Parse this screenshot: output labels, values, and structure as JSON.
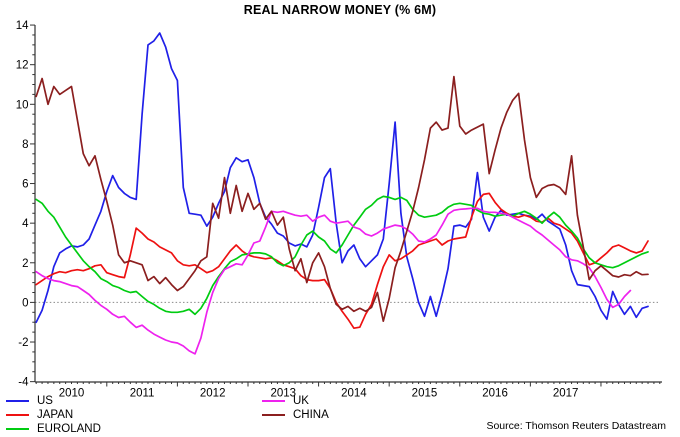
{
  "source": "Source: Thomson Reuters Datastream",
  "legend": {
    "columns": [
      [
        "US",
        "JAPAN",
        "EUROLAND"
      ],
      [
        "UK",
        "CHINA"
      ]
    ]
  },
  "chart_data": {
    "type": "line",
    "title": "REAL NARROW MONEY (% 6M)",
    "x_start": "2010-01",
    "x_end": "2018-09",
    "frequency": "monthly",
    "ylim": [
      -4,
      14
    ],
    "ytick_step": 2,
    "y_ticks": [
      14,
      12,
      10,
      8,
      6,
      4,
      2,
      0,
      -2,
      -4
    ],
    "year_labels": [
      "2010",
      "2011",
      "2012",
      "2013",
      "2014",
      "2015",
      "2016",
      "2017"
    ],
    "zero_line": true,
    "grid": false,
    "legend_position": "bottom",
    "series": [
      {
        "name": "US",
        "color": "#2020e8",
        "values": [
          -1.0,
          -0.4,
          0.6,
          1.8,
          2.5,
          2.7,
          2.85,
          2.8,
          2.9,
          3.2,
          3.9,
          4.6,
          5.6,
          6.4,
          5.8,
          5.5,
          5.3,
          5.2,
          9.5,
          13.0,
          13.2,
          13.6,
          12.9,
          11.8,
          11.2,
          5.8,
          4.5,
          4.45,
          4.4,
          3.85,
          4.3,
          5.0,
          5.6,
          6.8,
          7.3,
          7.1,
          7.2,
          6.3,
          5.0,
          4.3,
          3.95,
          3.5,
          3.35,
          3.0,
          2.85,
          2.95,
          2.8,
          3.4,
          4.8,
          6.3,
          6.75,
          4.0,
          2.0,
          2.6,
          2.9,
          2.2,
          1.8,
          2.1,
          2.4,
          3.2,
          6.0,
          9.1,
          4.5,
          2.3,
          1.2,
          0.0,
          -0.7,
          0.3,
          -0.7,
          0.4,
          1.7,
          3.85,
          3.9,
          3.8,
          4.2,
          6.55,
          4.3,
          3.6,
          4.3,
          4.65,
          4.4,
          4.45,
          4.5,
          4.4,
          4.35,
          4.2,
          4.45,
          4.1,
          3.9,
          3.7,
          2.9,
          1.6,
          0.9,
          0.85,
          0.8,
          0.3,
          -0.4,
          -0.85,
          0.55,
          -0.1,
          -0.6,
          -0.2,
          -0.75,
          -0.3,
          -0.2
        ]
      },
      {
        "name": "JAPAN",
        "color": "#ee1111",
        "values": [
          0.9,
          1.1,
          1.3,
          1.45,
          1.55,
          1.5,
          1.6,
          1.65,
          1.6,
          1.7,
          1.85,
          1.9,
          1.5,
          1.4,
          1.3,
          1.25,
          2.4,
          3.75,
          3.5,
          3.2,
          3.05,
          2.8,
          2.65,
          2.5,
          2.1,
          1.9,
          1.85,
          1.9,
          1.7,
          1.5,
          1.6,
          1.8,
          2.2,
          2.6,
          2.9,
          2.6,
          2.4,
          2.3,
          2.25,
          2.2,
          2.25,
          2.1,
          1.9,
          1.8,
          1.7,
          1.35,
          1.15,
          1.1,
          1.1,
          1.15,
          0.7,
          0.0,
          -0.45,
          -0.85,
          -1.3,
          -1.25,
          -0.6,
          -0.1,
          0.9,
          1.8,
          2.4,
          2.1,
          2.2,
          2.4,
          2.6,
          2.9,
          3.0,
          3.1,
          3.2,
          2.9,
          3.1,
          3.2,
          3.25,
          3.3,
          4.3,
          5.1,
          5.45,
          5.5,
          5.05,
          4.7,
          4.5,
          4.35,
          4.3,
          4.4,
          4.3,
          4.1,
          4.05,
          4.25,
          4.0,
          3.9,
          3.7,
          3.5,
          3.1,
          2.5,
          1.9,
          2.0,
          2.25,
          2.5,
          2.8,
          2.9,
          2.75,
          2.6,
          2.5,
          2.6,
          3.1
        ]
      },
      {
        "name": "EUROLAND",
        "color": "#00cc11",
        "values": [
          5.2,
          5.0,
          4.6,
          4.3,
          3.8,
          3.3,
          2.9,
          2.5,
          2.1,
          1.8,
          1.55,
          1.2,
          1.05,
          0.85,
          0.75,
          0.6,
          0.5,
          0.55,
          0.3,
          0.05,
          -0.1,
          -0.3,
          -0.45,
          -0.5,
          -0.5,
          -0.45,
          -0.35,
          -0.6,
          -0.3,
          0.2,
          0.85,
          1.3,
          1.7,
          2.05,
          2.2,
          2.4,
          2.45,
          2.5,
          2.5,
          2.45,
          2.3,
          2.0,
          1.85,
          2.0,
          2.3,
          2.9,
          3.4,
          3.6,
          3.3,
          3.1,
          2.7,
          2.5,
          2.9,
          3.4,
          3.9,
          4.3,
          4.7,
          4.9,
          5.2,
          5.35,
          5.3,
          5.2,
          5.3,
          5.15,
          4.7,
          4.4,
          4.3,
          4.35,
          4.4,
          4.55,
          4.8,
          4.95,
          5.0,
          4.95,
          4.9,
          4.65,
          4.5,
          4.45,
          4.35,
          4.4,
          4.45,
          4.35,
          4.5,
          4.6,
          4.45,
          4.25,
          4.0,
          4.3,
          4.55,
          4.3,
          3.9,
          3.6,
          3.25,
          2.7,
          2.25,
          2.0,
          1.9,
          1.8,
          1.75,
          1.85,
          2.0,
          2.15,
          2.3,
          2.45,
          2.55
        ]
      },
      {
        "name": "UK",
        "color": "#ee22ee",
        "values": [
          1.55,
          1.35,
          1.2,
          1.1,
          1.05,
          0.95,
          0.85,
          0.8,
          0.6,
          0.4,
          0.1,
          -0.15,
          -0.35,
          -0.6,
          -0.76,
          -0.7,
          -1.0,
          -1.26,
          -1.15,
          -1.4,
          -1.6,
          -1.75,
          -1.9,
          -2.0,
          -2.05,
          -2.2,
          -2.45,
          -2.6,
          -1.8,
          -0.5,
          0.5,
          1.2,
          1.66,
          1.8,
          1.95,
          1.9,
          2.4,
          3.0,
          3.1,
          3.8,
          4.6,
          4.55,
          4.6,
          4.5,
          4.4,
          4.35,
          4.4,
          4.1,
          4.3,
          4.4,
          4.1,
          4.0,
          4.05,
          4.1,
          3.8,
          3.7,
          3.45,
          3.35,
          3.5,
          3.7,
          3.8,
          3.9,
          3.85,
          3.7,
          3.45,
          3.1,
          3.05,
          3.2,
          3.4,
          3.9,
          4.45,
          4.65,
          4.7,
          4.72,
          4.75,
          4.75,
          4.6,
          4.55,
          4.55,
          4.5,
          4.45,
          4.3,
          4.15,
          4.0,
          3.85,
          3.6,
          3.4,
          3.15,
          2.9,
          2.65,
          2.3,
          2.15,
          2.1,
          1.95,
          1.75,
          1.3,
          0.75,
          0.15,
          -0.25,
          -0.1,
          0.3,
          0.6,
          null,
          null,
          null
        ]
      },
      {
        "name": "CHINA",
        "color": "#8b1f1f",
        "values": [
          10.4,
          11.3,
          10.0,
          10.9,
          10.5,
          10.7,
          10.9,
          9.2,
          7.5,
          6.9,
          7.4,
          6.2,
          5.1,
          3.9,
          2.4,
          2.0,
          2.1,
          2.0,
          1.9,
          1.1,
          1.3,
          0.95,
          1.25,
          0.9,
          0.6,
          0.8,
          1.2,
          1.6,
          2.1,
          2.3,
          5.0,
          4.25,
          6.3,
          4.5,
          5.9,
          4.6,
          5.5,
          4.7,
          5.0,
          4.2,
          4.6,
          3.9,
          4.3,
          2.7,
          1.6,
          2.2,
          1.0,
          2.0,
          2.5,
          1.8,
          0.7,
          -0.1,
          -0.35,
          -0.2,
          -0.45,
          -0.3,
          -0.45,
          -0.25,
          0.5,
          -0.95,
          0.2,
          1.75,
          2.6,
          3.6,
          4.6,
          5.8,
          7.2,
          8.8,
          9.1,
          8.7,
          8.8,
          11.4,
          8.9,
          8.5,
          8.7,
          8.85,
          9.0,
          6.5,
          7.7,
          8.8,
          9.6,
          10.2,
          10.55,
          8.2,
          6.3,
          5.3,
          5.75,
          5.9,
          5.95,
          5.8,
          5.45,
          7.4,
          4.4,
          2.8,
          1.15,
          1.6,
          1.85,
          1.6,
          1.35,
          1.28,
          1.4,
          1.35,
          1.55,
          1.4,
          1.42
        ]
      }
    ]
  }
}
